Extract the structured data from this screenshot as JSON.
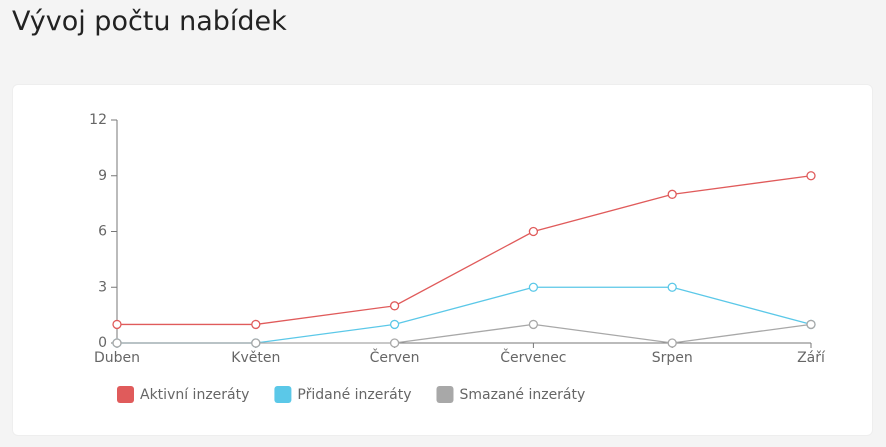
{
  "header": {
    "title": "Vývoj počtu nabídek"
  },
  "chart_data": {
    "type": "line",
    "categories": [
      "Duben",
      "Květen",
      "Červen",
      "Červenec",
      "Srpen",
      "Září"
    ],
    "series": [
      {
        "name": "Aktivní inzeráty",
        "color": "#e05b5b",
        "values": [
          1,
          1,
          2,
          6,
          8,
          9
        ]
      },
      {
        "name": "Přidané inzeráty",
        "color": "#5bc8e8",
        "values": [
          0,
          0,
          1,
          3,
          3,
          1
        ]
      },
      {
        "name": "Smazané inzeráty",
        "color": "#a8a8a8",
        "values": [
          0,
          0,
          0,
          1,
          0,
          1
        ]
      }
    ],
    "ylim": [
      0,
      12
    ],
    "yticks": [
      0,
      3,
      6,
      9,
      12
    ]
  }
}
